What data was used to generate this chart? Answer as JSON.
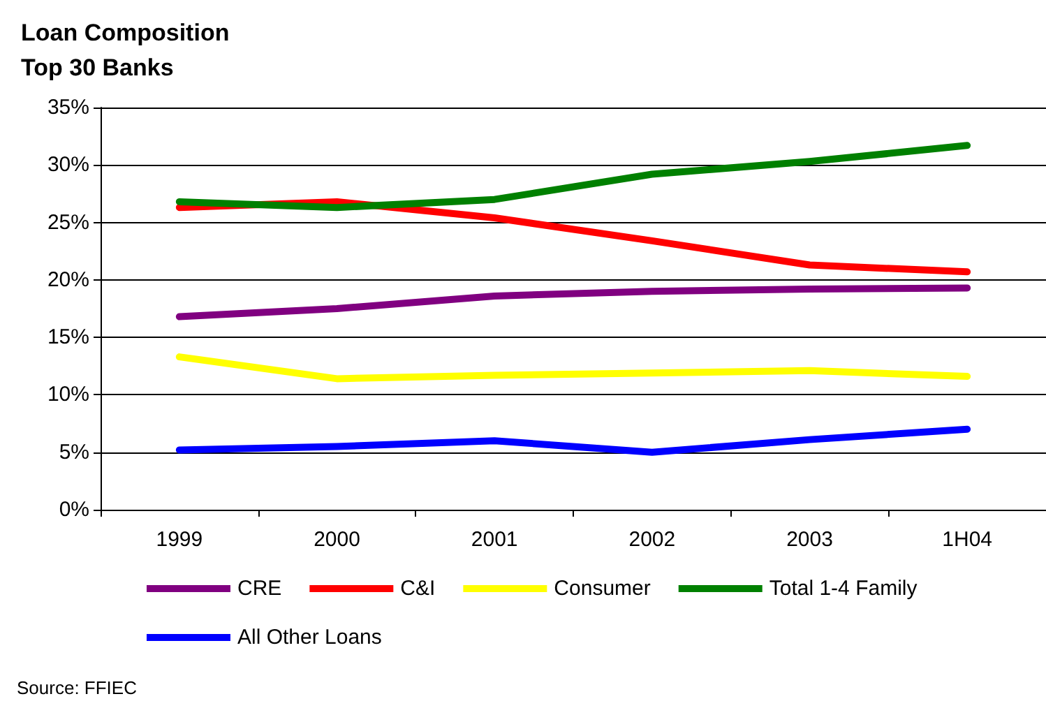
{
  "chart_data": {
    "type": "line",
    "title": "Loan Composition\nTop 30 Banks",
    "categories": [
      "1999",
      "2000",
      "2001",
      "2002",
      "2003",
      "1H04"
    ],
    "series": [
      {
        "name": "CRE",
        "color": "#800080",
        "values": [
          16.8,
          17.5,
          18.6,
          19.0,
          19.2,
          19.3
        ]
      },
      {
        "name": "C&I",
        "color": "#ff0000",
        "values": [
          26.3,
          26.8,
          25.4,
          23.4,
          21.3,
          20.7
        ]
      },
      {
        "name": "Consumer",
        "color": "#ffff00",
        "values": [
          13.3,
          11.4,
          11.7,
          11.9,
          12.1,
          11.6
        ]
      },
      {
        "name": "Total 1-4 Family",
        "color": "#008000",
        "values": [
          26.8,
          26.3,
          27.0,
          29.2,
          30.3,
          31.7
        ]
      },
      {
        "name": "All Other Loans",
        "color": "#0000ff",
        "values": [
          5.2,
          5.5,
          6.0,
          5.0,
          6.1,
          7.0
        ]
      }
    ],
    "ylim": [
      0,
      35
    ],
    "yticks": [
      {
        "value": 0,
        "label": "0%"
      },
      {
        "value": 5,
        "label": "5%"
      },
      {
        "value": 10,
        "label": "10%"
      },
      {
        "value": 15,
        "label": "15%"
      },
      {
        "value": 20,
        "label": "20%"
      },
      {
        "value": 25,
        "label": "25%"
      },
      {
        "value": 30,
        "label": "30%"
      },
      {
        "value": 35,
        "label": "35%"
      }
    ],
    "grid": "y",
    "legend": "bottom",
    "marker": "none",
    "line_style": "solid",
    "annotations": [
      "Source: FFIEC"
    ]
  }
}
